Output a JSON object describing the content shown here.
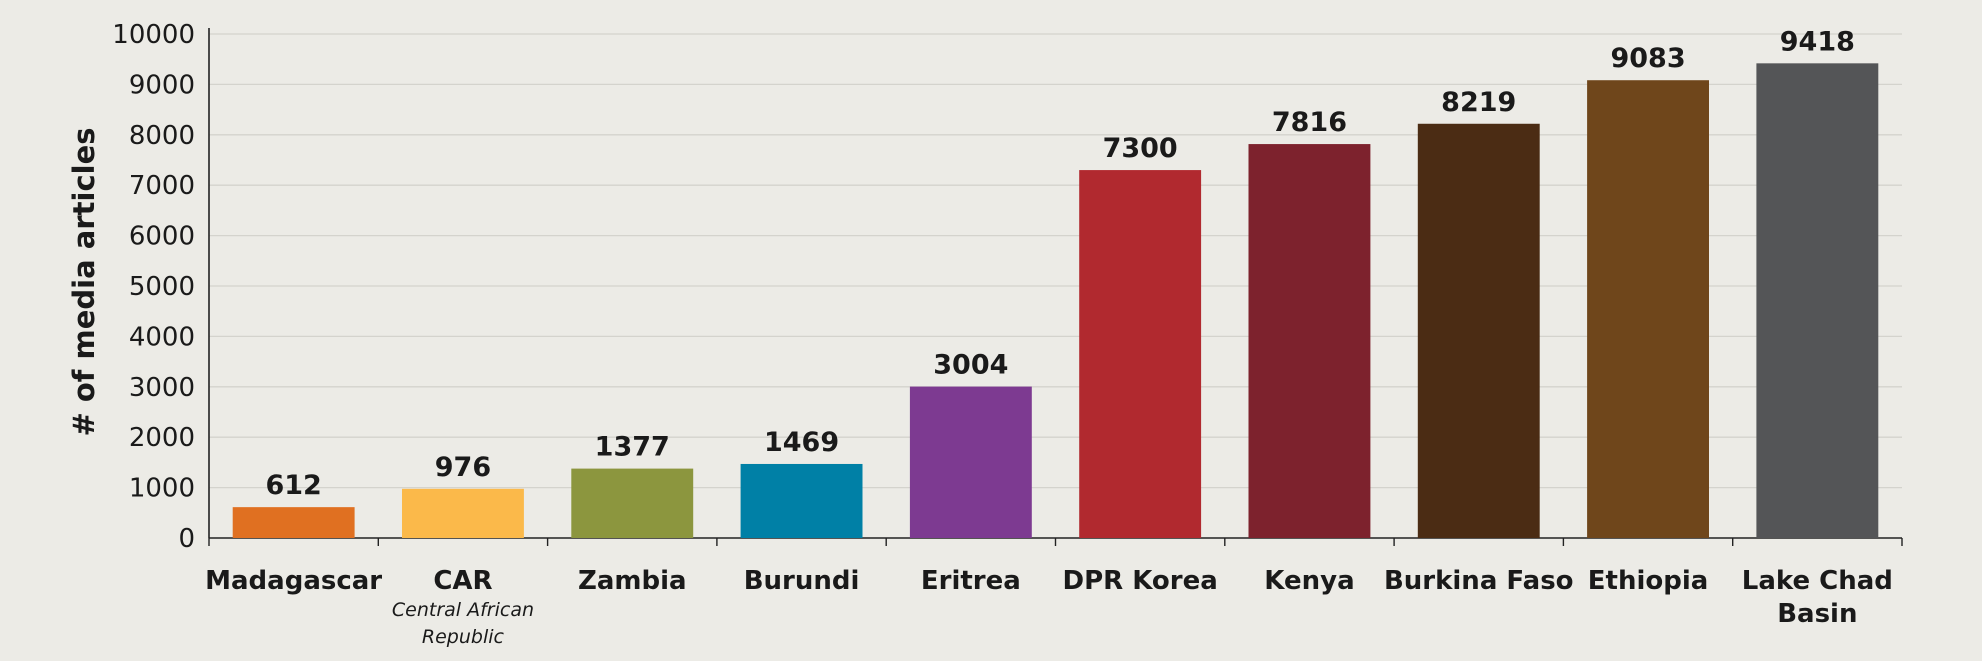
{
  "chart_data": {
    "type": "bar",
    "ylabel": "# of media articles",
    "xlabel": "",
    "ylim": [
      0,
      10000
    ],
    "yticks": [
      0,
      1000,
      2000,
      3000,
      4000,
      5000,
      6000,
      7000,
      8000,
      9000,
      10000
    ],
    "grid": true,
    "legend": "none",
    "categories": [
      "Madagascar",
      "CAR",
      "Zambia",
      "Burundi",
      "Eritrea",
      "DPR Korea",
      "Kenya",
      "Burkina Faso",
      "Ethiopia",
      "Lake Chad Basin"
    ],
    "category_sublabels": [
      "",
      "Central African Republic",
      "",
      "",
      "",
      "",
      "",
      "",
      "",
      ""
    ],
    "values": [
      612,
      976,
      1377,
      1469,
      3004,
      7300,
      7816,
      8219,
      9083,
      9418
    ],
    "colors": [
      "#e07021",
      "#fbb94a",
      "#8c963e",
      "#0080a6",
      "#7d3a91",
      "#b1292f",
      "#7d222d",
      "#4b2c14",
      "#6f461b",
      "#545557"
    ]
  }
}
